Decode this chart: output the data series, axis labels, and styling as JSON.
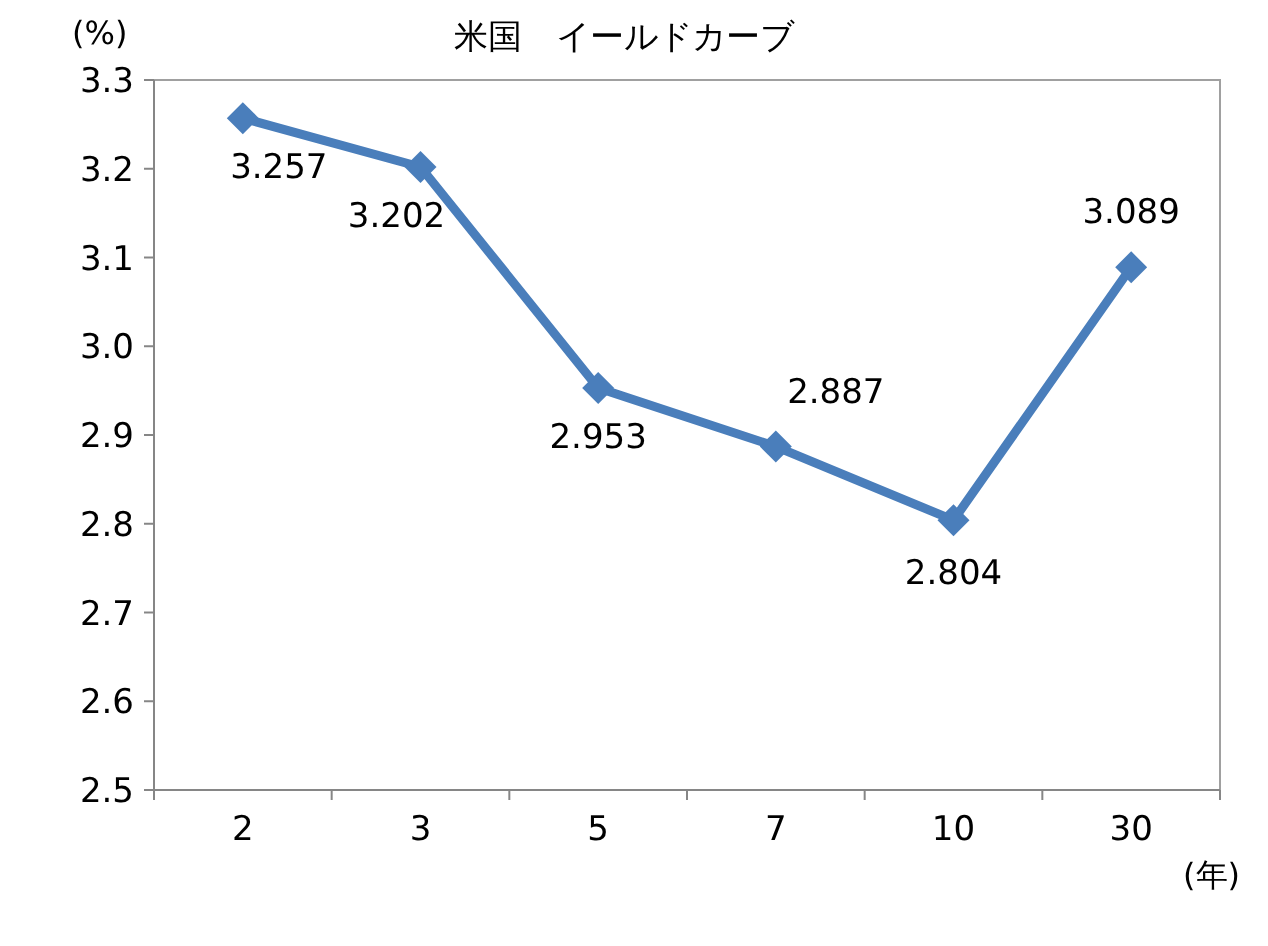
{
  "chart_data": {
    "type": "line",
    "title": "米国　イールドカーブ",
    "ylabel": "(%)",
    "xlabel": "(年)",
    "categories": [
      "2",
      "3",
      "5",
      "7",
      "10",
      "30"
    ],
    "series": [
      {
        "color": "#4a7ebb",
        "values": [
          3.257,
          3.202,
          2.953,
          2.887,
          2.804,
          3.089
        ]
      }
    ],
    "ylim": [
      2.5,
      3.3
    ],
    "yticks": [
      2.5,
      2.6,
      2.7,
      2.8,
      2.9,
      {
        "value": 3,
        "label": "3.0"
      },
      3.1,
      3.2,
      3.3
    ],
    "data_labels": true,
    "marker": "diamond",
    "line_style": "solid",
    "grid": false
  }
}
